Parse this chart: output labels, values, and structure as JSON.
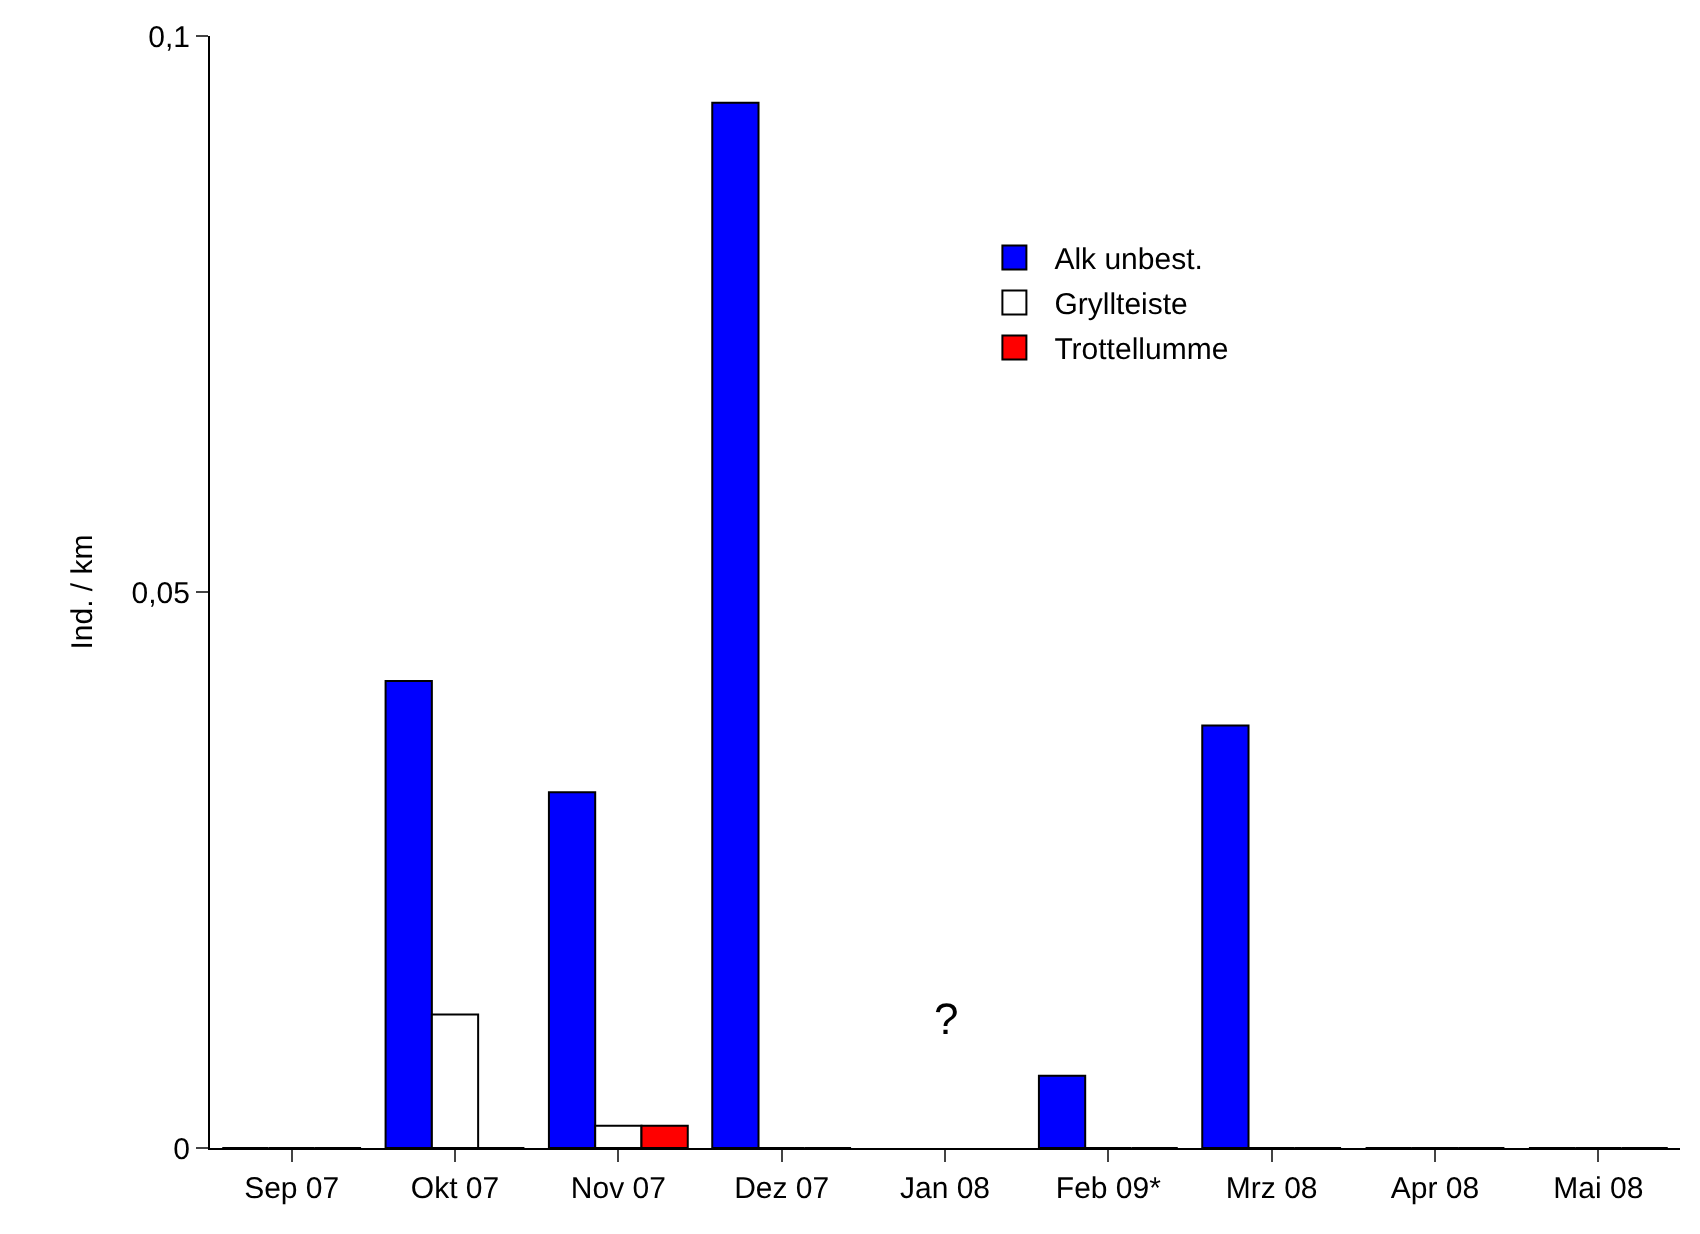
{
  "chart_data": {
    "type": "bar",
    "ylabel": "Ind. / km",
    "categories": [
      "Sep 07",
      "Okt 07",
      "Nov 07",
      "Dez 07",
      "Jan 08",
      "Feb 09*",
      "Mrz 08",
      "Apr 08",
      "Mai 08"
    ],
    "series": [
      {
        "name": "Alk unbest.",
        "color": "#0000ff",
        "values": [
          0,
          0.042,
          0.032,
          0.094,
          null,
          0.0065,
          0.038,
          0,
          0
        ]
      },
      {
        "name": "Gryllteiste",
        "color": "#ffffff",
        "values": [
          0,
          0.012,
          0.002,
          0,
          null,
          0,
          0,
          0,
          0
        ]
      },
      {
        "name": "Trottellumme",
        "color": "#ff0000",
        "values": [
          0,
          0,
          0.002,
          0,
          null,
          0,
          0,
          0,
          0
        ]
      }
    ],
    "ylim": [
      0,
      0.1
    ],
    "yticks": [
      {
        "value": 0,
        "label": "0"
      },
      {
        "value": 0.05,
        "label": "0,05"
      },
      {
        "value": 0.1,
        "label": "0,1"
      }
    ],
    "annotations": [
      "?"
    ],
    "legend": "top right"
  }
}
